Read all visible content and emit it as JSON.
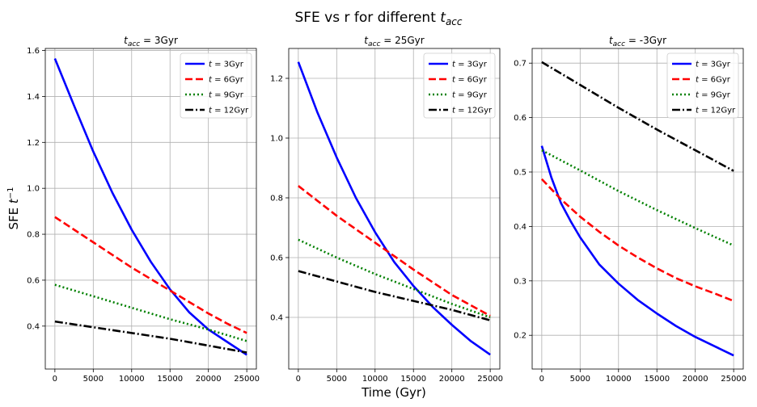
{
  "figure": {
    "title": "SFE vs r for different t_acc",
    "xlabel": "Time (Gyr)",
    "ylabel": "SFE t^-1"
  },
  "colors": {
    "t3": "#0000ff",
    "t6": "#ff0000",
    "t9": "#008000",
    "t12": "#000000",
    "grid": "#b0b0b0"
  },
  "chart_data": [
    {
      "type": "line",
      "title": "t_acc = 3Gyr",
      "xlim": [
        -1250,
        26250
      ],
      "ylim": [
        0.213,
        1.609
      ],
      "xticks": [
        0,
        5000,
        10000,
        15000,
        20000,
        25000
      ],
      "yticks": [
        0.4,
        0.6,
        0.8,
        1.0,
        1.2,
        1.4,
        1.6
      ],
      "grid": true,
      "legend": "upper right",
      "series": [
        {
          "name": "t = 3Gyr",
          "style": "solid",
          "color": "#0000ff",
          "x": [
            0,
            2500,
            5000,
            7500,
            10000,
            12500,
            15000,
            17500,
            20000,
            22500,
            25000
          ],
          "y": [
            1.565,
            1.36,
            1.16,
            0.98,
            0.82,
            0.68,
            0.56,
            0.46,
            0.385,
            0.33,
            0.275
          ]
        },
        {
          "name": "t = 6Gyr",
          "style": "dashed",
          "color": "#ff0000",
          "x": [
            0,
            2500,
            5000,
            7500,
            10000,
            12500,
            15000,
            17500,
            20000,
            22500,
            25000
          ],
          "y": [
            0.875,
            0.82,
            0.765,
            0.71,
            0.655,
            0.605,
            0.555,
            0.505,
            0.455,
            0.41,
            0.37
          ]
        },
        {
          "name": "t = 9Gyr",
          "style": "dotted",
          "color": "#008000",
          "x": [
            0,
            5000,
            10000,
            15000,
            20000,
            25000
          ],
          "y": [
            0.58,
            0.53,
            0.48,
            0.43,
            0.385,
            0.335
          ]
        },
        {
          "name": "t = 12Gyr",
          "style": "dashdot",
          "color": "#000000",
          "x": [
            0,
            5000,
            10000,
            15000,
            20000,
            25000
          ],
          "y": [
            0.42,
            0.395,
            0.37,
            0.345,
            0.315,
            0.285
          ]
        }
      ]
    },
    {
      "type": "line",
      "title": "t_acc = 25Gyr",
      "xlim": [
        -1250,
        26250
      ],
      "ylim": [
        0.227,
        1.3
      ],
      "xticks": [
        0,
        5000,
        10000,
        15000,
        20000,
        25000
      ],
      "yticks": [
        0.4,
        0.6,
        0.8,
        1.0,
        1.2
      ],
      "grid": true,
      "legend": "upper right",
      "series": [
        {
          "name": "t = 3Gyr",
          "style": "solid",
          "color": "#0000ff",
          "x": [
            0,
            2500,
            5000,
            7500,
            10000,
            12500,
            15000,
            17500,
            20000,
            22500,
            25000
          ],
          "y": [
            1.255,
            1.085,
            0.935,
            0.8,
            0.685,
            0.585,
            0.505,
            0.435,
            0.375,
            0.32,
            0.275
          ]
        },
        {
          "name": "t = 6Gyr",
          "style": "dashed",
          "color": "#ff0000",
          "x": [
            0,
            5000,
            10000,
            15000,
            20000,
            25000
          ],
          "y": [
            0.84,
            0.74,
            0.65,
            0.56,
            0.475,
            0.405
          ]
        },
        {
          "name": "t = 9Gyr",
          "style": "dotted",
          "color": "#008000",
          "x": [
            0,
            5000,
            10000,
            15000,
            20000,
            25000
          ],
          "y": [
            0.66,
            0.6,
            0.545,
            0.495,
            0.445,
            0.4
          ]
        },
        {
          "name": "t = 12Gyr",
          "style": "dashdot",
          "color": "#000000",
          "x": [
            0,
            5000,
            10000,
            15000,
            20000,
            25000
          ],
          "y": [
            0.555,
            0.52,
            0.485,
            0.455,
            0.425,
            0.39
          ]
        }
      ]
    },
    {
      "type": "line",
      "title": "t_acc = -3Gyr",
      "xlim": [
        -1250,
        26250
      ],
      "ylim": [
        0.138,
        0.727
      ],
      "xticks": [
        0,
        5000,
        10000,
        15000,
        20000,
        25000
      ],
      "yticks": [
        0.2,
        0.3,
        0.4,
        0.5,
        0.6,
        0.7
      ],
      "grid": true,
      "legend": "upper right",
      "series": [
        {
          "name": "t = 3Gyr",
          "style": "solid",
          "color": "#0000ff",
          "x": [
            0,
            1250,
            2500,
            3750,
            5000,
            7500,
            10000,
            12500,
            15000,
            17500,
            20000,
            22500,
            25000
          ],
          "y": [
            0.548,
            0.49,
            0.443,
            0.41,
            0.38,
            0.33,
            0.295,
            0.265,
            0.24,
            0.217,
            0.197,
            0.18,
            0.163
          ]
        },
        {
          "name": "t = 6Gyr",
          "style": "dashed",
          "color": "#ff0000",
          "x": [
            0,
            2500,
            5000,
            7500,
            10000,
            12500,
            15000,
            17500,
            20000,
            22500,
            25000
          ],
          "y": [
            0.487,
            0.45,
            0.418,
            0.39,
            0.365,
            0.343,
            0.323,
            0.305,
            0.29,
            0.277,
            0.263
          ]
        },
        {
          "name": "t = 9Gyr",
          "style": "dotted",
          "color": "#008000",
          "x": [
            0,
            5000,
            10000,
            15000,
            20000,
            25000
          ],
          "y": [
            0.54,
            0.503,
            0.465,
            0.43,
            0.397,
            0.365
          ]
        },
        {
          "name": "t = 12Gyr",
          "style": "dashdot",
          "color": "#000000",
          "x": [
            0,
            5000,
            10000,
            15000,
            20000,
            25000
          ],
          "y": [
            0.702,
            0.66,
            0.618,
            0.578,
            0.54,
            0.502
          ]
        }
      ]
    }
  ]
}
